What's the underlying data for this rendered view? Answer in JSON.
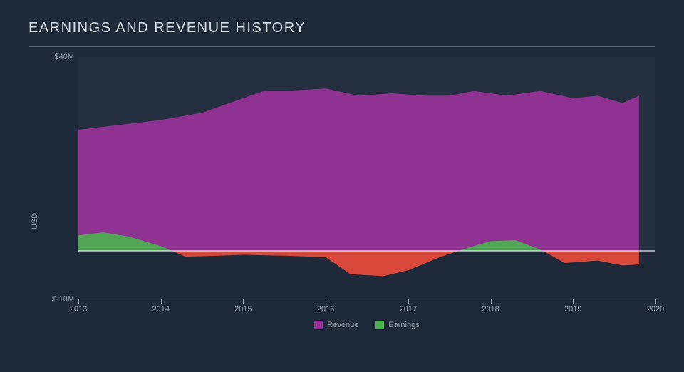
{
  "chart": {
    "type": "area",
    "title": "EARNINGS AND REVENUE HISTORY",
    "title_fontsize": 20,
    "title_letter_spacing": 1.5,
    "background_color": "#1e2a3a",
    "plot_background_color": "#24303f",
    "text_color": "#d8dde3",
    "muted_text_color": "#9aa4b0",
    "title_underline_color": "#5a6470",
    "axis_line_color": "#c8ccd2",
    "zero_line_color": "#e8eaec",
    "x_tick_color": "#9aa4b0",
    "y_axis_title": "USD",
    "y_labels": {
      "top": "$40M",
      "bottom": "$-10M"
    },
    "ylim_min": -10,
    "ylim_max": 40,
    "xlim_min": 2013,
    "xlim_max": 2020,
    "x_ticks": [
      2013,
      2014,
      2015,
      2016,
      2017,
      2018,
      2019,
      2020
    ],
    "series": [
      {
        "name": "Revenue",
        "color": "#993399",
        "points": [
          {
            "x": 2013.0,
            "y": 25.0
          },
          {
            "x": 2013.5,
            "y": 26.0
          },
          {
            "x": 2014.0,
            "y": 27.0
          },
          {
            "x": 2014.5,
            "y": 28.5
          },
          {
            "x": 2015.0,
            "y": 31.5
          },
          {
            "x": 2015.25,
            "y": 33.0
          },
          {
            "x": 2015.5,
            "y": 33.0
          },
          {
            "x": 2016.0,
            "y": 33.5
          },
          {
            "x": 2016.4,
            "y": 32.0
          },
          {
            "x": 2016.8,
            "y": 32.5
          },
          {
            "x": 2017.2,
            "y": 32.0
          },
          {
            "x": 2017.5,
            "y": 32.0
          },
          {
            "x": 2017.8,
            "y": 33.0
          },
          {
            "x": 2018.2,
            "y": 32.0
          },
          {
            "x": 2018.6,
            "y": 33.0
          },
          {
            "x": 2019.0,
            "y": 31.5
          },
          {
            "x": 2019.3,
            "y": 32.0
          },
          {
            "x": 2019.6,
            "y": 30.5
          },
          {
            "x": 2019.8,
            "y": 32.0
          }
        ]
      },
      {
        "name": "Earnings",
        "color_positive": "#4caf50",
        "color_negative": "#e84c3d",
        "points": [
          {
            "x": 2013.0,
            "y": 3.2
          },
          {
            "x": 2013.3,
            "y": 3.8
          },
          {
            "x": 2013.6,
            "y": 3.0
          },
          {
            "x": 2014.0,
            "y": 1.0
          },
          {
            "x": 2014.3,
            "y": -1.2
          },
          {
            "x": 2014.7,
            "y": -1.0
          },
          {
            "x": 2015.0,
            "y": -0.8
          },
          {
            "x": 2015.5,
            "y": -1.0
          },
          {
            "x": 2016.0,
            "y": -1.3
          },
          {
            "x": 2016.3,
            "y": -4.8
          },
          {
            "x": 2016.7,
            "y": -5.2
          },
          {
            "x": 2017.0,
            "y": -4.0
          },
          {
            "x": 2017.4,
            "y": -1.2
          },
          {
            "x": 2017.7,
            "y": 0.5
          },
          {
            "x": 2018.0,
            "y": 2.0
          },
          {
            "x": 2018.3,
            "y": 2.2
          },
          {
            "x": 2018.6,
            "y": 0.3
          },
          {
            "x": 2018.9,
            "y": -2.5
          },
          {
            "x": 2019.3,
            "y": -2.0
          },
          {
            "x": 2019.6,
            "y": -3.0
          },
          {
            "x": 2019.8,
            "y": -2.8
          }
        ]
      }
    ],
    "legend": [
      {
        "label": "Revenue",
        "color": "#993399"
      },
      {
        "label": "Earnings",
        "color": "#4caf50"
      }
    ],
    "label_fontsize": 11
  }
}
